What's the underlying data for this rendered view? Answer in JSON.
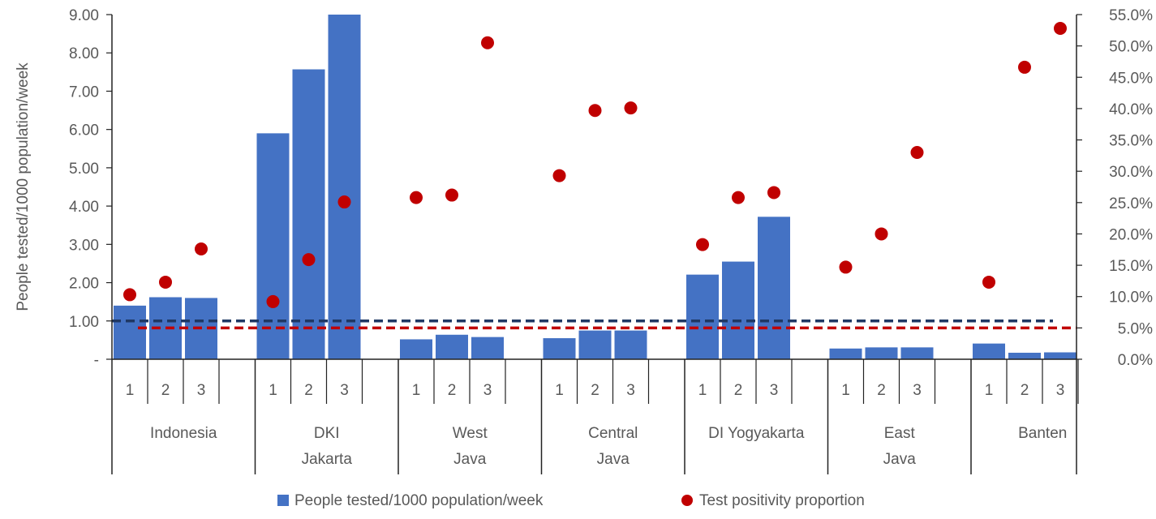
{
  "chart_data": {
    "type": "bar",
    "y_axis_left": {
      "label": "People tested/1000 population/week",
      "ylim": [
        0,
        9
      ],
      "ticks": [
        {
          "value": 0,
          "label": "-"
        },
        {
          "value": 1,
          "label": "1.00"
        },
        {
          "value": 2,
          "label": "2.00"
        },
        {
          "value": 3,
          "label": "3.00"
        },
        {
          "value": 4,
          "label": "4.00"
        },
        {
          "value": 5,
          "label": "5.00"
        },
        {
          "value": 6,
          "label": "6.00"
        },
        {
          "value": 7,
          "label": "7.00"
        },
        {
          "value": 8,
          "label": "8.00"
        },
        {
          "value": 9,
          "label": "9.00"
        }
      ]
    },
    "y_axis_right": {
      "ylim": [
        0,
        55
      ],
      "ticks": [
        {
          "value": 0,
          "label": "0.0%"
        },
        {
          "value": 5,
          "label": "5.0%"
        },
        {
          "value": 10,
          "label": "10.0%"
        },
        {
          "value": 15,
          "label": "15.0%"
        },
        {
          "value": 20,
          "label": "20.0%"
        },
        {
          "value": 25,
          "label": "25.0%"
        },
        {
          "value": 30,
          "label": "30.0%"
        },
        {
          "value": 35,
          "label": "35.0%"
        },
        {
          "value": 40,
          "label": "40.0%"
        },
        {
          "value": 45,
          "label": "45.0%"
        },
        {
          "value": 50,
          "label": "50.0%"
        },
        {
          "value": 55,
          "label": "55.0%"
        }
      ]
    },
    "groups": [
      {
        "name": [
          "Indonesia"
        ],
        "periods": [
          "1",
          "2",
          "3"
        ],
        "tested": [
          1.4,
          1.62,
          1.6
        ],
        "positivity": [
          10.3,
          12.3,
          17.6
        ]
      },
      {
        "name": [
          "DKI",
          "Jakarta"
        ],
        "periods": [
          "1",
          "2",
          "3"
        ],
        "tested": [
          5.9,
          7.57,
          9.0
        ],
        "positivity": [
          9.2,
          15.9,
          25.1
        ]
      },
      {
        "name": [
          "West",
          "Java"
        ],
        "periods": [
          "1",
          "2",
          "3"
        ],
        "tested": [
          0.52,
          0.64,
          0.58
        ],
        "positivity": [
          25.8,
          26.2,
          50.5
        ]
      },
      {
        "name": [
          "Central",
          "Java"
        ],
        "periods": [
          "1",
          "2",
          "3"
        ],
        "tested": [
          0.55,
          0.75,
          0.75
        ],
        "positivity": [
          29.3,
          39.7,
          40.1
        ]
      },
      {
        "name": [
          "DI Yogyakarta"
        ],
        "periods": [
          "1",
          "2",
          "3"
        ],
        "tested": [
          2.21,
          2.55,
          3.72
        ],
        "positivity": [
          18.3,
          25.8,
          26.6
        ]
      },
      {
        "name": [
          "East",
          "Java"
        ],
        "periods": [
          "1",
          "2",
          "3"
        ],
        "tested": [
          0.28,
          0.31,
          0.31
        ],
        "positivity": [
          14.7,
          20.0,
          33.0
        ]
      },
      {
        "name": [
          "Banten"
        ],
        "periods": [
          "1",
          "2",
          "3"
        ],
        "tested": [
          0.41,
          0.17,
          0.18
        ],
        "positivity": [
          12.3,
          46.6,
          52.8
        ]
      }
    ],
    "reference_lines": [
      {
        "axis": "left",
        "value": 1.0,
        "color": "#1f3864"
      },
      {
        "axis": "right",
        "value": 5.0,
        "color": "#c00000"
      }
    ],
    "series": [
      {
        "name": "People tested/1000 population/week",
        "kind": "bar",
        "color": "#4472c4"
      },
      {
        "name": "Test positivity proportion",
        "kind": "scatter",
        "color": "#c00000"
      }
    ],
    "legend_position": "bottom",
    "grid": false
  }
}
